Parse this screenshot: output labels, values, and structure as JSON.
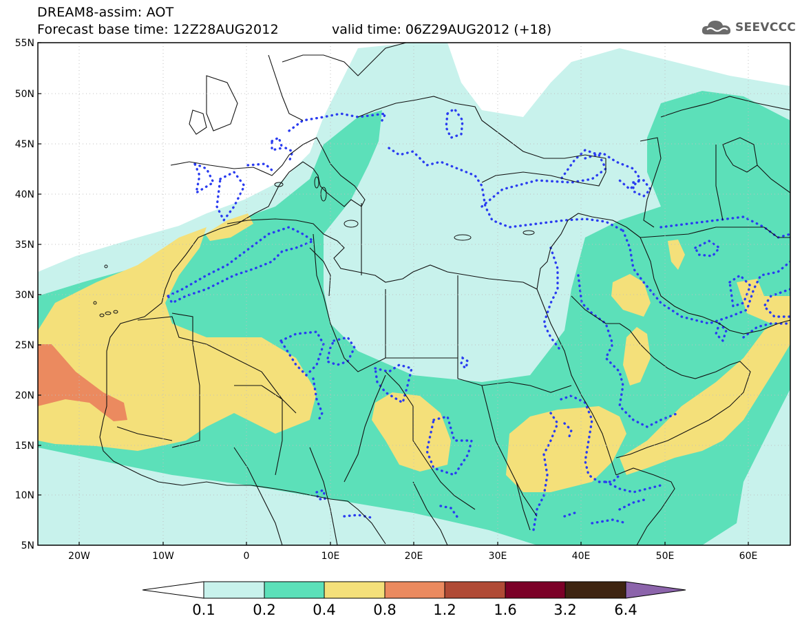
{
  "header": {
    "line1": "DREAM8-assim: AOT",
    "line2": "Forecast base time: 12Z28AUG2012",
    "valid": "valid time: 06Z29AUG2012 (+18)",
    "logo": "SEEVCCC"
  },
  "map": {
    "lat_labels": [
      "55N",
      "50N",
      "45N",
      "40N",
      "35N",
      "30N",
      "25N",
      "20N",
      "15N",
      "10N",
      "5N"
    ],
    "lon_labels": [
      "20W",
      "10W",
      "0",
      "10E",
      "20E",
      "30E",
      "40E",
      "50E",
      "60E"
    ]
  },
  "legend": {
    "levels": [
      "0.1",
      "0.2",
      "0.4",
      "0.8",
      "1.2",
      "1.6",
      "3.2",
      "6.4"
    ],
    "colors": [
      "#ffffff",
      "#c8f2ec",
      "#5ce0b9",
      "#f4e07a",
      "#eb8a5f",
      "#b04a35",
      "#7b0027",
      "#3e2411",
      "#8c64ab"
    ]
  }
}
